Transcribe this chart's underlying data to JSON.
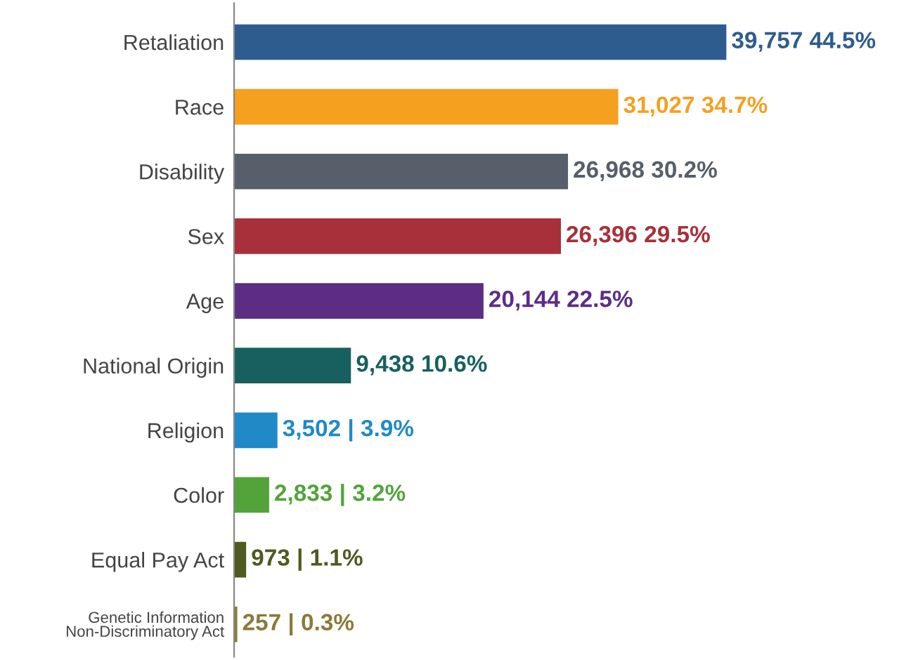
{
  "chart_data": {
    "type": "bar",
    "orientation": "horizontal",
    "categories": [
      "Retaliation",
      "Race",
      "Disability",
      "Sex",
      "Age",
      "National Origin",
      "Religion",
      "Color",
      "Equal Pay Act",
      "Genetic Information\nNon-Discriminatory Act"
    ],
    "values": [
      39757,
      31027,
      26968,
      26396,
      20144,
      9438,
      3502,
      2833,
      973,
      257
    ],
    "colors": [
      "#2e5c8f",
      "#f5a01f",
      "#565f6a",
      "#a8303a",
      "#5c2d85",
      "#17605f",
      "#1f8ac7",
      "#52a43a",
      "#4e5a1f",
      "#8a7a3a"
    ],
    "value_labels": [
      "39,757 44.5%",
      "31,027 34.7%",
      "26,968 30.2%",
      "26,396 29.5%",
      "20,144 22.5%",
      "9,438 10.6%",
      "3,502 | 3.9%",
      "2,833 | 3.2%",
      "973 | 1.1%",
      "257 | 0.3%"
    ],
    "grid": false,
    "legend": false
  }
}
